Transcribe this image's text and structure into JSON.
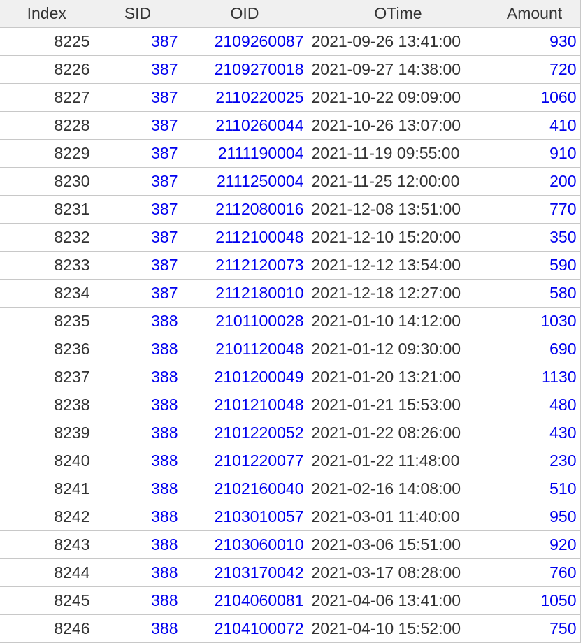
{
  "colors": {
    "link_blue": "#0000ee",
    "text_dark": "#333333",
    "header_bg": "#f0f0f0",
    "grid_line": "#c8c8c8"
  },
  "table": {
    "columns": [
      "Index",
      "SID",
      "OID",
      "OTime",
      "Amount"
    ],
    "rows": [
      [
        "8225",
        "387",
        "2109260087",
        "2021-09-26 13:41:00",
        "930"
      ],
      [
        "8226",
        "387",
        "2109270018",
        "2021-09-27 14:38:00",
        "720"
      ],
      [
        "8227",
        "387",
        "2110220025",
        "2021-10-22 09:09:00",
        "1060"
      ],
      [
        "8228",
        "387",
        "2110260044",
        "2021-10-26 13:07:00",
        "410"
      ],
      [
        "8229",
        "387",
        "2111190004",
        "2021-11-19 09:55:00",
        "910"
      ],
      [
        "8230",
        "387",
        "2111250004",
        "2021-11-25 12:00:00",
        "200"
      ],
      [
        "8231",
        "387",
        "2112080016",
        "2021-12-08 13:51:00",
        "770"
      ],
      [
        "8232",
        "387",
        "2112100048",
        "2021-12-10 15:20:00",
        "350"
      ],
      [
        "8233",
        "387",
        "2112120073",
        "2021-12-12 13:54:00",
        "590"
      ],
      [
        "8234",
        "387",
        "2112180010",
        "2021-12-18 12:27:00",
        "580"
      ],
      [
        "8235",
        "388",
        "2101100028",
        "2021-01-10 14:12:00",
        "1030"
      ],
      [
        "8236",
        "388",
        "2101120048",
        "2021-01-12 09:30:00",
        "690"
      ],
      [
        "8237",
        "388",
        "2101200049",
        "2021-01-20 13:21:00",
        "1130"
      ],
      [
        "8238",
        "388",
        "2101210048",
        "2021-01-21 15:53:00",
        "480"
      ],
      [
        "8239",
        "388",
        "2101220052",
        "2021-01-22 08:26:00",
        "430"
      ],
      [
        "8240",
        "388",
        "2101220077",
        "2021-01-22 11:48:00",
        "230"
      ],
      [
        "8241",
        "388",
        "2102160040",
        "2021-02-16 14:08:00",
        "510"
      ],
      [
        "8242",
        "388",
        "2103010057",
        "2021-03-01 11:40:00",
        "950"
      ],
      [
        "8243",
        "388",
        "2103060010",
        "2021-03-06 15:51:00",
        "920"
      ],
      [
        "8244",
        "388",
        "2103170042",
        "2021-03-17 08:28:00",
        "760"
      ],
      [
        "8245",
        "388",
        "2104060081",
        "2021-04-06 13:41:00",
        "1050"
      ],
      [
        "8246",
        "388",
        "2104100072",
        "2021-04-10 15:52:00",
        "750"
      ]
    ]
  }
}
